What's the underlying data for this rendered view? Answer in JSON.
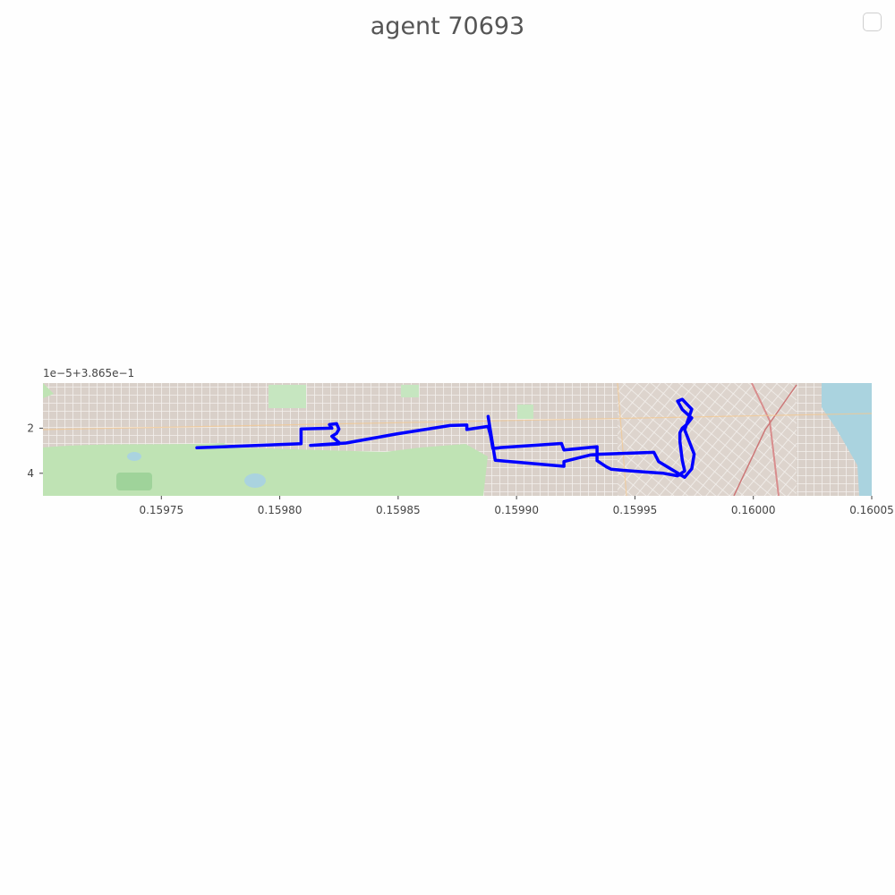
{
  "title": "agent 70693",
  "axis_offset_text": "1e−5+3.865e−1",
  "chart_data": {
    "type": "line",
    "title": "agent 70693",
    "xlabel": "",
    "ylabel": "",
    "xlim": [
      0.1597,
      0.16005
    ],
    "ylim": [
      0.0,
      5.0
    ],
    "x_ticks": [
      {
        "value": 0.15975,
        "label": "0.15975"
      },
      {
        "value": 0.1598,
        "label": "0.15980"
      },
      {
        "value": 0.15985,
        "label": "0.15985"
      },
      {
        "value": 0.1599,
        "label": "0.15990"
      },
      {
        "value": 0.15995,
        "label": "0.15995"
      },
      {
        "value": 0.16,
        "label": "0.16000"
      },
      {
        "value": 0.16005,
        "label": "0.16005"
      }
    ],
    "y_ticks": [
      {
        "value": 2,
        "label": "2"
      },
      {
        "value": 4,
        "label": "4"
      }
    ],
    "grid": false,
    "background": "map tiles",
    "series": [
      {
        "color": "#0000ff",
        "x": [
          0.159765,
          0.159809,
          0.159809,
          0.159822,
          0.159821,
          0.159824,
          0.159825,
          0.159824,
          0.159822,
          0.159825,
          0.159825,
          0.159813,
          0.159828,
          0.159849,
          0.159872,
          0.159879,
          0.159879,
          0.159888,
          0.159889,
          0.15989,
          0.159893,
          0.159893,
          0.159919,
          0.15992,
          0.159934,
          0.159934,
          0.159938,
          0.15994,
          0.159945,
          0.159955,
          0.159962,
          0.159968,
          0.159971,
          0.15997,
          0.159969,
          0.159969,
          0.15997,
          0.159972,
          0.159974,
          0.15997,
          0.159968,
          0.15997,
          0.159974,
          0.159971,
          0.159975,
          0.159974,
          0.159971,
          0.15996,
          0.159958,
          0.159934,
          0.159931,
          0.15992,
          0.15992,
          0.159891,
          0.159888
        ],
        "y": [
          2.87,
          2.69,
          2.03,
          2.0,
          1.84,
          1.8,
          2.04,
          2.23,
          2.36,
          2.63,
          2.7,
          2.76,
          2.66,
          2.26,
          1.88,
          1.86,
          2.06,
          1.92,
          2.31,
          2.9,
          2.87,
          2.86,
          2.68,
          2.97,
          2.82,
          3.44,
          3.72,
          3.82,
          3.87,
          3.95,
          4.0,
          4.11,
          3.9,
          3.42,
          2.6,
          2.2,
          2.0,
          1.82,
          1.55,
          1.17,
          0.8,
          0.72,
          1.16,
          2.07,
          3.15,
          3.8,
          4.18,
          3.48,
          3.07,
          3.16,
          3.19,
          3.48,
          3.69,
          3.42,
          1.48
        ]
      }
    ]
  }
}
